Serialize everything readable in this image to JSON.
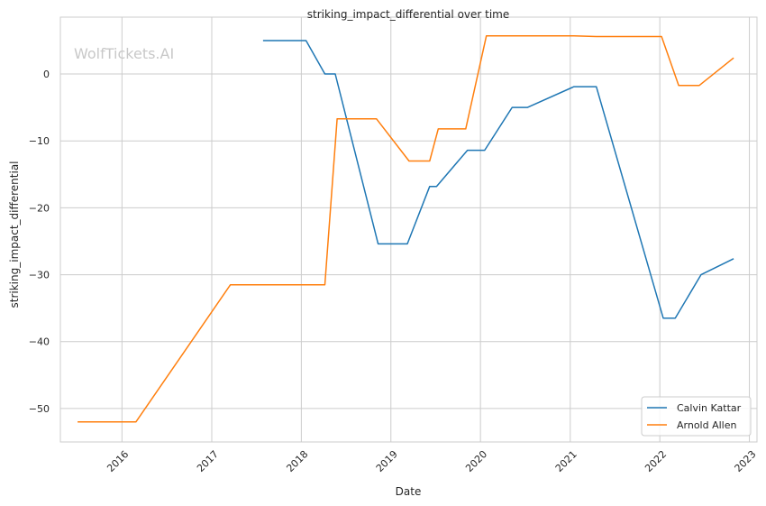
{
  "chart_data": {
    "type": "line",
    "title": "striking_impact_differential over time",
    "xlabel": "Date",
    "ylabel": "striking_impact_differential",
    "watermark": "WolfTickets.AI",
    "x_ticks": [
      "2016",
      "2017",
      "2018",
      "2019",
      "2020",
      "2021",
      "2022",
      "2023"
    ],
    "y_ticks": [
      0,
      -10,
      -20,
      -30,
      -40,
      -50
    ],
    "y_tick_labels": [
      "0",
      "−10",
      "−20",
      "−30",
      "−40",
      "−50"
    ],
    "xlim": [
      "2015-04-25",
      "2023-02-01"
    ],
    "ylim": [
      -55,
      8.5
    ],
    "grid": true,
    "legend_position": "lower right",
    "series": [
      {
        "name": "Calvin Kattar",
        "color": "#1f77b4",
        "points": [
          [
            "2017-07-29",
            5.0
          ],
          [
            "2018-01-20",
            5.0
          ],
          [
            "2018-04-07",
            0.0
          ],
          [
            "2018-05-19",
            0.0
          ],
          [
            "2018-11-10",
            -25.4
          ],
          [
            "2019-03-09",
            -25.4
          ],
          [
            "2019-06-08",
            -16.8
          ],
          [
            "2019-07-06",
            -16.8
          ],
          [
            "2019-11-09",
            -11.4
          ],
          [
            "2020-01-18",
            -11.4
          ],
          [
            "2020-05-09",
            -5.0
          ],
          [
            "2020-07-11",
            -5.0
          ],
          [
            "2021-01-16",
            -1.9
          ],
          [
            "2021-04-17",
            -1.9
          ],
          [
            "2022-01-15",
            -36.5
          ],
          [
            "2022-03-05",
            -36.5
          ],
          [
            "2022-06-18",
            -30.0
          ],
          [
            "2022-10-29",
            -27.6
          ]
        ]
      },
      {
        "name": "Arnold Allen",
        "color": "#ff7f0e",
        "points": [
          [
            "2015-07-04",
            -52.0
          ],
          [
            "2016-02-27",
            -52.0
          ],
          [
            "2017-03-18",
            -31.5
          ],
          [
            "2018-04-07",
            -31.5
          ],
          [
            "2018-05-27",
            -6.7
          ],
          [
            "2018-11-03",
            -6.7
          ],
          [
            "2019-03-16",
            -13.0
          ],
          [
            "2019-06-08",
            -13.0
          ],
          [
            "2019-07-13",
            -8.2
          ],
          [
            "2019-11-02",
            -8.2
          ],
          [
            "2020-01-25",
            5.7
          ],
          [
            "2021-01-16",
            5.7
          ],
          [
            "2021-04-17",
            5.6
          ],
          [
            "2022-01-08",
            5.6
          ],
          [
            "2022-03-19",
            -1.7
          ],
          [
            "2022-06-11",
            -1.7
          ],
          [
            "2022-10-29",
            2.4
          ]
        ]
      }
    ]
  }
}
